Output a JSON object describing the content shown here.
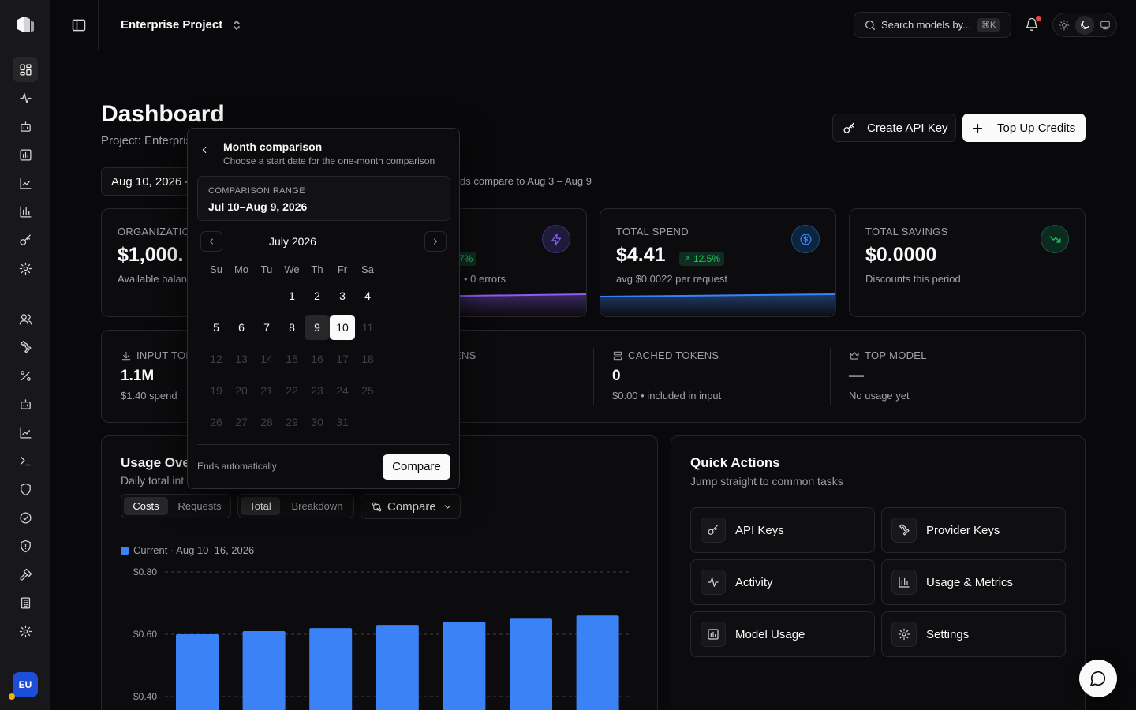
{
  "topbar": {
    "project_name": "Enterprise Project",
    "search_placeholder": "Search models by...",
    "search_shortcut": "⌘K",
    "theme_options": [
      "light",
      "dark",
      "system"
    ],
    "theme_selected": "dark"
  },
  "sidebar": {
    "items": [
      {
        "icon": "dashboard-icon",
        "active": true
      },
      {
        "icon": "activity-icon"
      },
      {
        "icon": "bot-icon"
      },
      {
        "icon": "bar-chart-icon"
      },
      {
        "icon": "trend-chart-icon"
      },
      {
        "icon": "column-chart-icon"
      },
      {
        "icon": "key-icon"
      },
      {
        "icon": "settings-icon"
      },
      {
        "icon": "users-icon"
      },
      {
        "icon": "wrench-icon"
      },
      {
        "icon": "percent-icon"
      },
      {
        "icon": "bot-icon"
      },
      {
        "icon": "trend-chart-icon"
      },
      {
        "icon": "terminal-icon"
      },
      {
        "icon": "shield-icon"
      },
      {
        "icon": "check-circle-icon"
      },
      {
        "icon": "shield-alert-icon"
      },
      {
        "icon": "hammer-icon"
      },
      {
        "icon": "building-icon"
      },
      {
        "icon": "settings-icon"
      }
    ],
    "avatar_initials": "EU"
  },
  "header": {
    "title": "Dashboard",
    "subtitle": "Project: Enterpris",
    "create_key_label": "Create API Key",
    "top_up_label": "Top Up Credits",
    "date_range": "Aug 10, 2026 -",
    "compare_note": "ds compare to Aug 3 – Aug 9"
  },
  "stats": {
    "org": {
      "label": "ORGANIZATIO",
      "value": "$1,000.",
      "sub": "Available balanc"
    },
    "requests": {
      "badge": "7%",
      "sub": "• 0 errors"
    },
    "spend": {
      "label": "TOTAL SPEND",
      "value": "$4.41",
      "badge": "12.5%",
      "sub": "avg $0.0022 per request"
    },
    "savings": {
      "label": "TOTAL SAVINGS",
      "value": "$0.0000",
      "sub": "Discounts this period"
    }
  },
  "tokens": {
    "input": {
      "label": "INPUT TOK",
      "value": "1.1M",
      "sub": "$1.40 spend"
    },
    "output": {
      "label": "ENS"
    },
    "cached": {
      "label": "CACHED TOKENS",
      "value": "0",
      "sub": "$0.00 • included in input"
    },
    "top_model": {
      "label": "TOP MODEL",
      "value": "—",
      "sub": "No usage yet"
    }
  },
  "usage": {
    "title": "Usage Ove",
    "subtitle": "Daily total int",
    "metric_tabs": [
      "Costs",
      "Requests"
    ],
    "metric_selected": "Costs",
    "view_tabs": [
      "Total",
      "Breakdown"
    ],
    "view_selected": "Total",
    "compare_label": "Compare"
  },
  "chart_data": {
    "type": "bar",
    "series": [
      {
        "name": "Current · Aug 10–16, 2026",
        "values": [
          0.6,
          0.61,
          0.62,
          0.63,
          0.64,
          0.65,
          0.66
        ],
        "color": "#3b82f6"
      }
    ],
    "y_ticks": [
      "$0.80",
      "$0.60",
      "$0.40"
    ],
    "y_tick_values": [
      0.8,
      0.6,
      0.4
    ],
    "grid": true,
    "grid_style": "dashed"
  },
  "quick_actions": {
    "title": "Quick Actions",
    "subtitle": "Jump straight to common tasks",
    "items": [
      {
        "label": "API Keys",
        "icon": "key-icon"
      },
      {
        "label": "Provider Keys",
        "icon": "wrench-icon"
      },
      {
        "label": "Activity",
        "icon": "activity-icon"
      },
      {
        "label": "Usage & Metrics",
        "icon": "column-chart-icon"
      },
      {
        "label": "Model Usage",
        "icon": "bar-chart-icon"
      },
      {
        "label": "Settings",
        "icon": "settings-icon"
      }
    ]
  },
  "popover": {
    "title": "Month comparison",
    "subtitle": "Choose a start date for the one-month comparison",
    "range_label": "COMPARISON RANGE",
    "range_value": "Jul 10–Aug 9, 2026",
    "month": "July 2026",
    "weekdays": [
      "Su",
      "Mo",
      "Tu",
      "We",
      "Th",
      "Fr",
      "Sa"
    ],
    "first_weekday": 3,
    "days_in_month": 31,
    "highlighted_day": 9,
    "selected_day": 10,
    "last_enabled_day": 10,
    "footer_text": "Ends automatically",
    "compare_button": "Compare"
  },
  "colors": {
    "accent": "#3b82f6",
    "positive": "#22c55e",
    "background": "#09090b",
    "violet": "#8b5cf6"
  }
}
